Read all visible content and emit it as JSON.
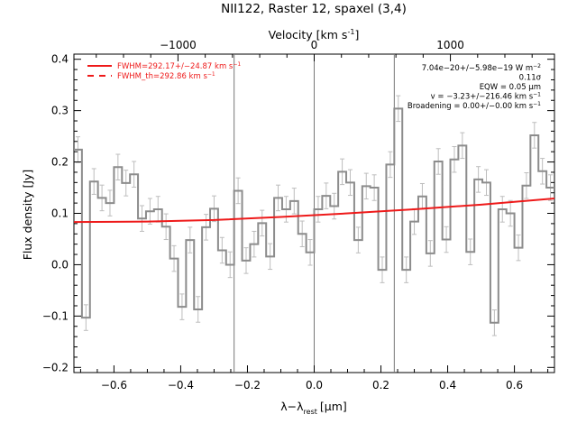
{
  "chart_data": {
    "type": "line",
    "title": "NII122, Raster 12, spaxel (3,4)",
    "xlabel_main": "λ",
    "xlabel_sub": "rest",
    "xlabel_unit": "[μm]",
    "ylabel": "Flux density [Jy]",
    "top_axis_label": "Velocity [km s",
    "top_axis_label_sup": "-1",
    "top_axis_label_end": "]",
    "xlim": [
      -0.72,
      0.72
    ],
    "ylim": [
      -0.21,
      0.41
    ],
    "x_ticks": [
      -0.6,
      -0.4,
      -0.2,
      0.0,
      0.2,
      0.4,
      0.6
    ],
    "x_tick_labels": [
      "−0.6",
      "−0.4",
      "−0.2",
      "0.0",
      "0.2",
      "0.4",
      "0.6"
    ],
    "y_ticks": [
      -0.2,
      -0.1,
      0.0,
      0.1,
      0.2,
      0.3,
      0.4
    ],
    "y_tick_labels": [
      "−0.2",
      "−0.1",
      "0.0",
      "0.1",
      "0.2",
      "0.3",
      "0.4"
    ],
    "top_ticks_velocity": [
      -1000,
      0,
      1000
    ],
    "top_tick_labels": [
      "−1000",
      "0",
      "1000"
    ],
    "velocity_per_micron": 2450,
    "vertical_lines_x": [
      -0.24,
      0.0,
      0.24
    ],
    "spectrum": {
      "name": "observed flux",
      "color": "#8c8c8c",
      "bin_width": 0.024,
      "x": [
        -0.708,
        -0.684,
        -0.66,
        -0.636,
        -0.612,
        -0.588,
        -0.564,
        -0.54,
        -0.516,
        -0.492,
        -0.468,
        -0.444,
        -0.42,
        -0.396,
        -0.372,
        -0.348,
        -0.324,
        -0.3,
        -0.276,
        -0.252,
        -0.228,
        -0.204,
        -0.18,
        -0.156,
        -0.132,
        -0.108,
        -0.084,
        -0.06,
        -0.036,
        -0.012,
        0.012,
        0.036,
        0.06,
        0.084,
        0.108,
        0.132,
        0.156,
        0.18,
        0.204,
        0.228,
        0.252,
        0.276,
        0.3,
        0.324,
        0.348,
        0.372,
        0.396,
        0.42,
        0.444,
        0.468,
        0.492,
        0.516,
        0.54,
        0.564,
        0.588,
        0.612,
        0.636,
        0.66,
        0.684,
        0.708
      ],
      "y": [
        0.224,
        -0.103,
        0.162,
        0.13,
        0.12,
        0.19,
        0.159,
        0.176,
        0.09,
        0.104,
        0.108,
        0.074,
        0.012,
        -0.082,
        0.048,
        -0.087,
        0.073,
        0.109,
        0.028,
        0.0,
        0.144,
        0.008,
        0.04,
        0.081,
        0.016,
        0.13,
        0.108,
        0.124,
        0.06,
        0.024,
        0.108,
        0.134,
        0.114,
        0.181,
        0.16,
        0.048,
        0.153,
        0.15,
        -0.01,
        0.195,
        0.304,
        -0.01,
        0.084,
        0.133,
        0.022,
        0.201,
        0.049,
        0.205,
        0.232,
        0.025,
        0.166,
        0.16,
        -0.113,
        0.108,
        0.1,
        0.033,
        0.154,
        0.252,
        0.182,
        0.15
      ],
      "yerr": 0.025
    },
    "fit": {
      "name": "FWHM=292.17+/-24.87 km s",
      "color": "#ee1a1a",
      "x": [
        -0.72,
        -0.5,
        -0.3,
        -0.1,
        0.1,
        0.3,
        0.5,
        0.72
      ],
      "y": [
        0.083,
        0.084,
        0.087,
        0.093,
        0.1,
        0.108,
        0.117,
        0.129
      ]
    },
    "legend": [
      {
        "label": "FWHM=292.17+/−24.87 km s",
        "sup": "−1",
        "style": "solid",
        "color": "#ee1a1a"
      },
      {
        "label": "FWHM_th=292.86 km s",
        "sup": "−1",
        "style": "dashed",
        "color": "#ee1a1a"
      }
    ],
    "annotations": [
      {
        "text": "7.04e−20+/−5.98e−19 W m",
        "sup": "−2"
      },
      {
        "text": "0.11σ",
        "sup": ""
      },
      {
        "text": "EQW = 0.05 μm",
        "sup": ""
      },
      {
        "text": "v = −3.23+/−216.46 km s",
        "sup": "−1"
      },
      {
        "text": "Broadening = 0.00+/−0.00 km s",
        "sup": "−1"
      }
    ]
  }
}
